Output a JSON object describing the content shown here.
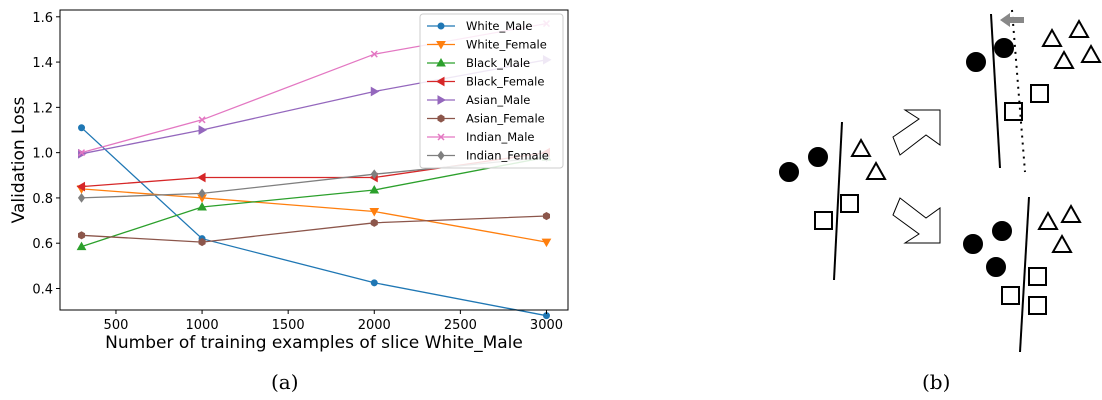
{
  "panels": {
    "a_label": "(a)",
    "b_label": "(b)"
  },
  "chart_data": {
    "type": "line",
    "xlabel": "Number of training examples of slice White_Male",
    "ylabel": "Validation Loss",
    "xlim": [
      175,
      3125
    ],
    "ylim": [
      0.305,
      1.63
    ],
    "xticks": [
      500,
      1000,
      1500,
      2000,
      2500,
      3000
    ],
    "yticks": [
      0.4,
      0.6,
      0.8,
      1.0,
      1.2,
      1.4,
      1.6
    ],
    "x": [
      300,
      1000,
      2000,
      3000
    ],
    "grid": false,
    "legend_position": "top-right",
    "series": [
      {
        "name": "White_Male",
        "color": "#1f77b4",
        "marker": "circle",
        "values": [
          1.11,
          0.62,
          0.425,
          0.28
        ]
      },
      {
        "name": "White_Female",
        "color": "#ff7f0e",
        "marker": "triangle-down",
        "values": [
          0.84,
          0.8,
          0.74,
          0.605
        ]
      },
      {
        "name": "Black_Male",
        "color": "#2ca02c",
        "marker": "triangle-up",
        "values": [
          0.585,
          0.76,
          0.835,
          0.98
        ]
      },
      {
        "name": "Black_Female",
        "color": "#d62728",
        "marker": "triangle-left",
        "values": [
          0.85,
          0.89,
          0.89,
          1.0
        ]
      },
      {
        "name": "Asian_Male",
        "color": "#9467bd",
        "marker": "triangle-right",
        "values": [
          0.995,
          1.1,
          1.27,
          1.41
        ]
      },
      {
        "name": "Asian_Female",
        "color": "#8c564b",
        "marker": "hexagon",
        "values": [
          0.635,
          0.605,
          0.69,
          0.72
        ]
      },
      {
        "name": "Indian_Male",
        "color": "#e377c2",
        "marker": "x",
        "values": [
          1.0,
          1.145,
          1.435,
          1.57
        ]
      },
      {
        "name": "Indian_Female",
        "color": "#7f7f7f",
        "marker": "diamond",
        "values": [
          0.8,
          0.82,
          0.905,
          0.98
        ]
      }
    ]
  },
  "diagram_b": {
    "shapes": [
      "filled-circle",
      "open-triangle",
      "open-square"
    ],
    "arrow_colors": {
      "shift_arrow": "#888888",
      "block_arrow_stroke": "#000000"
    }
  }
}
